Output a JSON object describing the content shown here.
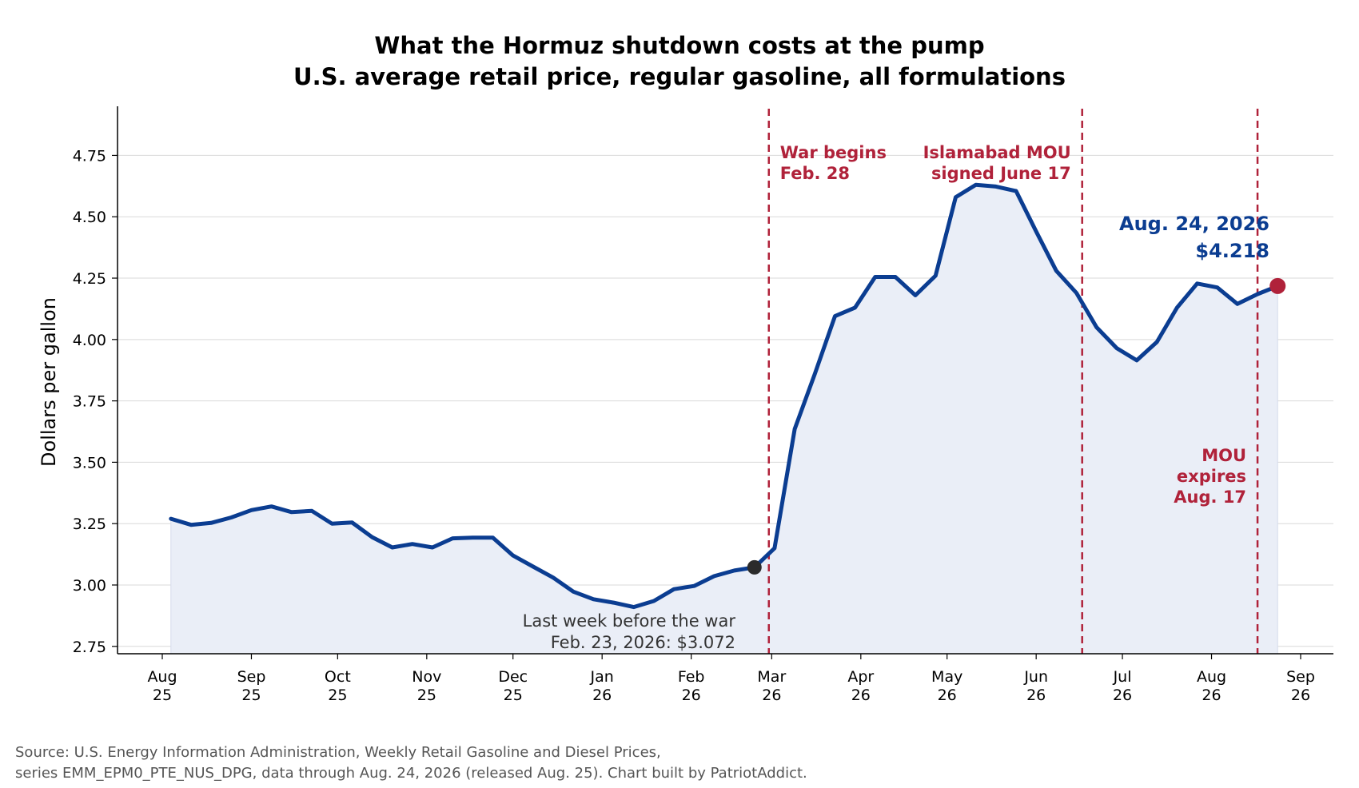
{
  "chart_data": {
    "type": "line",
    "title": "What the Hormuz shutdown costs at the pump",
    "subtitle": "U.S. average retail price, regular gasoline, all formulations",
    "xlabel": "",
    "ylabel": "Dollars per gallon",
    "ylim": [
      2.72,
      4.95
    ],
    "y_ticks": [
      "2.75",
      "3.00",
      "3.25",
      "3.50",
      "3.75",
      "4.00",
      "4.25",
      "4.50",
      "4.75"
    ],
    "x_ticks": [
      {
        "date": "2025-08-01",
        "label": [
          "Aug",
          "25"
        ]
      },
      {
        "date": "2025-09-01",
        "label": [
          "Sep",
          "25"
        ]
      },
      {
        "date": "2025-10-01",
        "label": [
          "Oct",
          "25"
        ]
      },
      {
        "date": "2025-11-01",
        "label": [
          "Nov",
          "25"
        ]
      },
      {
        "date": "2025-12-01",
        "label": [
          "Dec",
          "25"
        ]
      },
      {
        "date": "2026-01-01",
        "label": [
          "Jan",
          "26"
        ]
      },
      {
        "date": "2026-02-01",
        "label": [
          "Feb",
          "26"
        ]
      },
      {
        "date": "2026-03-01",
        "label": [
          "Mar",
          "26"
        ]
      },
      {
        "date": "2026-04-01",
        "label": [
          "Apr",
          "26"
        ]
      },
      {
        "date": "2026-05-01",
        "label": [
          "May",
          "26"
        ]
      },
      {
        "date": "2026-06-01",
        "label": [
          "Jun",
          "26"
        ]
      },
      {
        "date": "2026-07-01",
        "label": [
          "Jul",
          "26"
        ]
      },
      {
        "date": "2026-08-01",
        "label": [
          "Aug",
          "26"
        ]
      },
      {
        "date": "2026-09-01",
        "label": [
          "Sep",
          "26"
        ]
      }
    ],
    "grid": "horizontal",
    "series": [
      {
        "color": "#0b3d91",
        "fill": "#eaeef7",
        "x": [
          "2025-08-04",
          "2025-08-11",
          "2025-08-18",
          "2025-08-25",
          "2025-09-01",
          "2025-09-08",
          "2025-09-15",
          "2025-09-22",
          "2025-09-29",
          "2025-10-06",
          "2025-10-13",
          "2025-10-20",
          "2025-10-27",
          "2025-11-03",
          "2025-11-10",
          "2025-11-17",
          "2025-11-24",
          "2025-12-01",
          "2025-12-08",
          "2025-12-15",
          "2025-12-22",
          "2025-12-29",
          "2026-01-05",
          "2026-01-12",
          "2026-01-19",
          "2026-01-26",
          "2026-02-02",
          "2026-02-09",
          "2026-02-16",
          "2026-02-23",
          "2026-03-02",
          "2026-03-09",
          "2026-03-16",
          "2026-03-23",
          "2026-03-30",
          "2026-04-06",
          "2026-04-13",
          "2026-04-20",
          "2026-04-27",
          "2026-05-04",
          "2026-05-11",
          "2026-05-18",
          "2026-05-25",
          "2026-06-01",
          "2026-06-08",
          "2026-06-15",
          "2026-06-22",
          "2026-06-29",
          "2026-07-06",
          "2026-07-13",
          "2026-07-20",
          "2026-07-27",
          "2026-08-03",
          "2026-08-10",
          "2026-08-17",
          "2026-08-24"
        ],
        "values": [
          3.27,
          3.245,
          3.253,
          3.275,
          3.305,
          3.32,
          3.297,
          3.302,
          3.25,
          3.255,
          3.195,
          3.153,
          3.167,
          3.153,
          3.19,
          3.193,
          3.193,
          3.12,
          3.075,
          3.03,
          2.973,
          2.942,
          2.928,
          2.91,
          2.935,
          2.983,
          2.996,
          3.036,
          3.059,
          3.072,
          3.15,
          3.635,
          3.86,
          4.095,
          4.13,
          4.255,
          4.255,
          4.18,
          4.26,
          4.58,
          4.63,
          4.623,
          4.605,
          4.44,
          4.28,
          4.19,
          4.05,
          3.965,
          3.915,
          3.99,
          4.13,
          4.228,
          4.212,
          4.145,
          4.185,
          4.218
        ]
      }
    ],
    "markers": [
      {
        "date": "2026-02-23",
        "value": 3.072,
        "color": "#2b2b2b"
      },
      {
        "date": "2026-08-24",
        "value": 4.218,
        "color": "#b0223a"
      }
    ],
    "event_lines": [
      {
        "date": "2026-02-28",
        "color": "#b0223a",
        "label": [
          "War begins",
          "Feb. 28"
        ]
      },
      {
        "date": "2026-06-17",
        "color": "#b0223a",
        "label": [
          "Islamabad MOU",
          "signed June 17"
        ]
      },
      {
        "date": "2026-08-17",
        "color": "#b0223a",
        "label": [
          "MOU",
          "expires",
          "Aug. 17"
        ]
      }
    ],
    "annotations": {
      "last_week": [
        "Last week before the war",
        "Feb. 23, 2026: $3.072"
      ],
      "latest": [
        "Aug. 24, 2026",
        "$4.218"
      ]
    }
  },
  "source": {
    "line1": "Source: U.S. Energy Information Administration, Weekly Retail Gasoline and Diesel Prices,",
    "line2": "series EMM_EPM0_PTE_NUS_DPG, data through Aug. 24, 2026 (released Aug. 25).  Chart built by PatriotAddict."
  }
}
